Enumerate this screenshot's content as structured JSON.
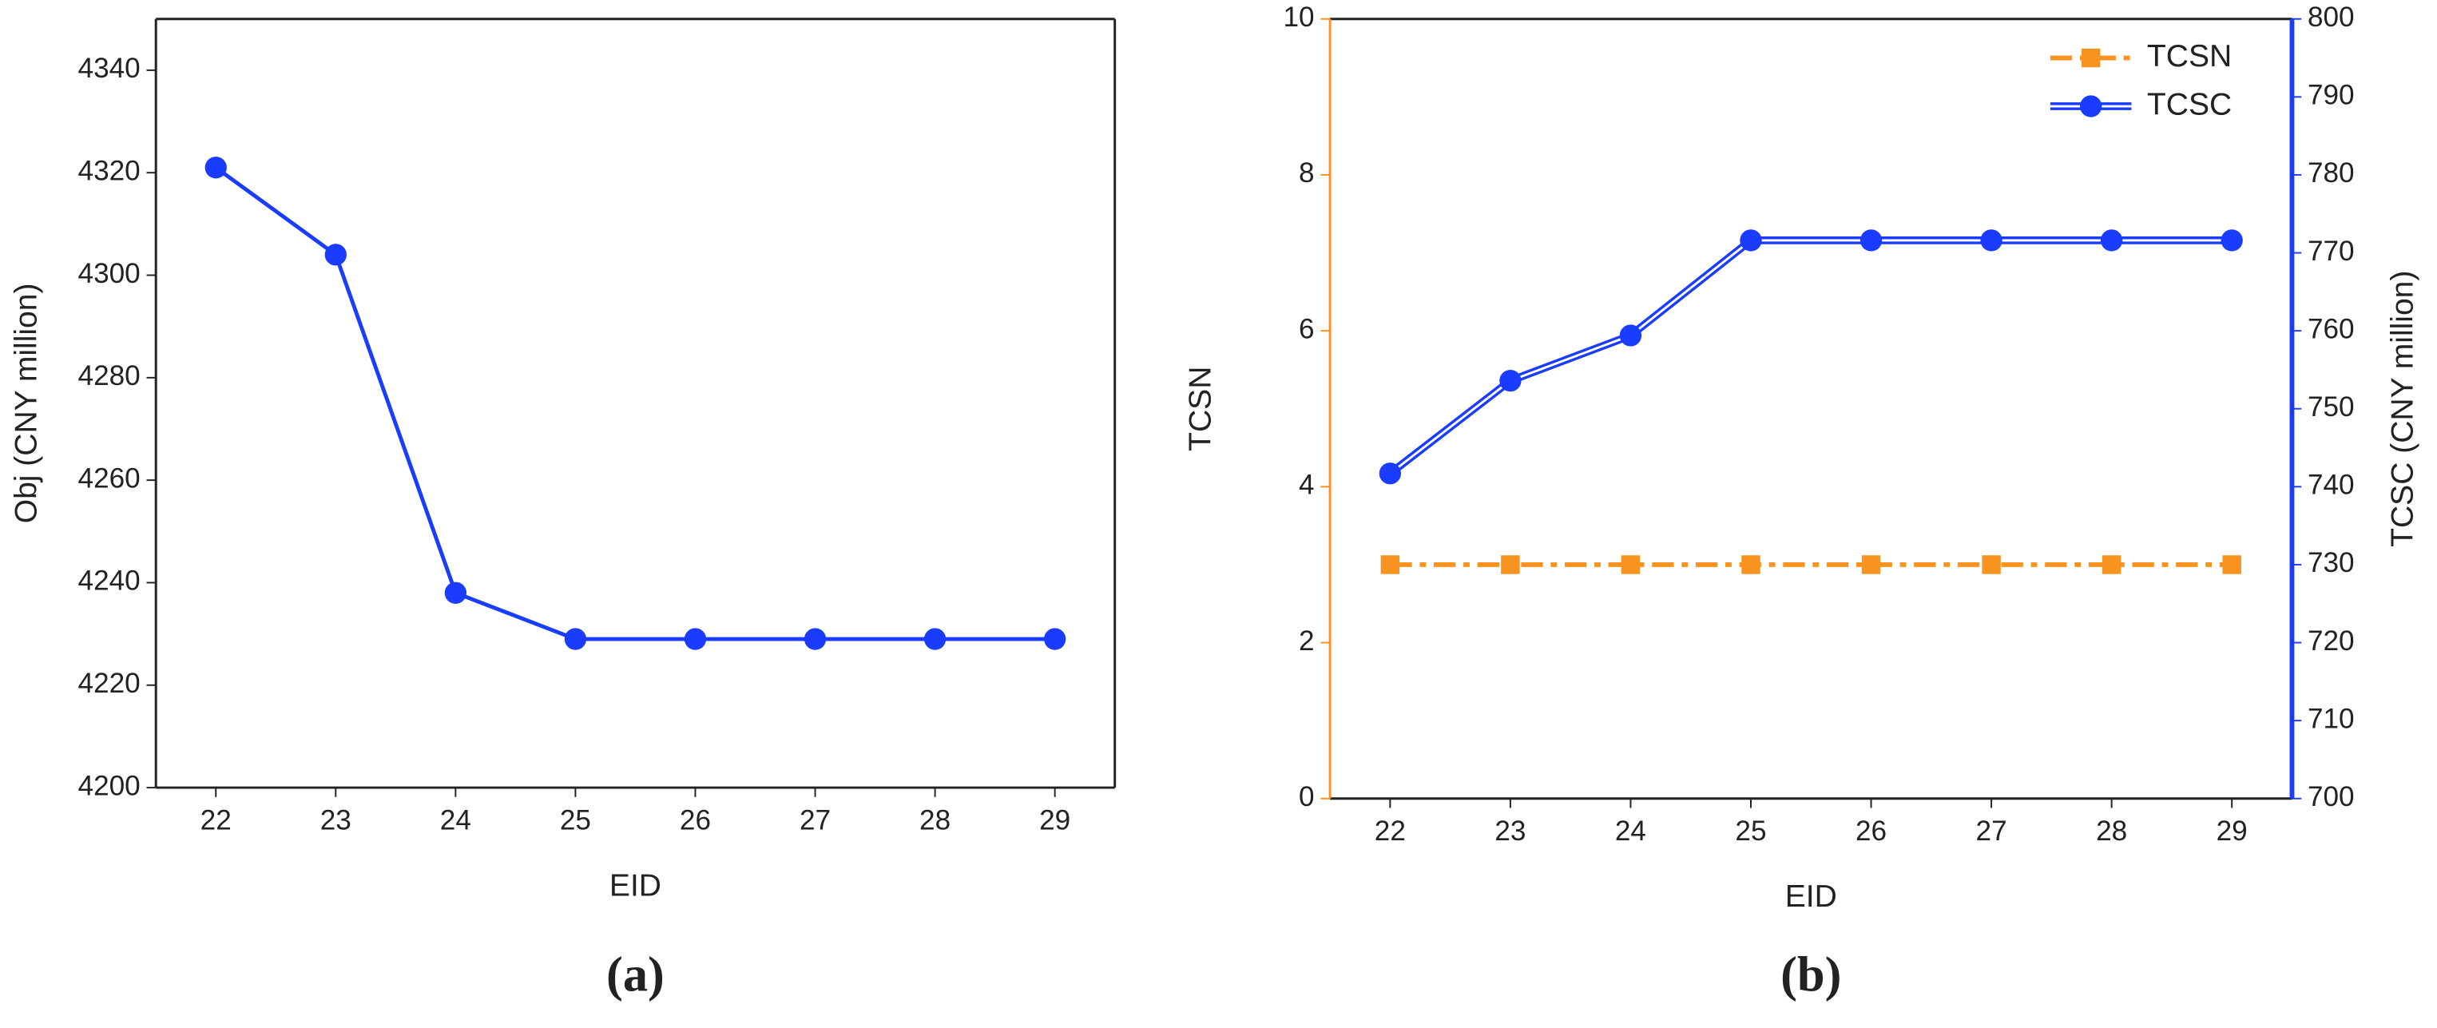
{
  "chart_data": [
    {
      "type": "line",
      "panel_label": "(a)",
      "x_label": "EID",
      "y_label": "Obj (CNY million)",
      "x": [
        22,
        23,
        24,
        25,
        26,
        27,
        28,
        29
      ],
      "values": [
        4321,
        4304,
        4238,
        4229,
        4229,
        4229,
        4229,
        4229
      ],
      "color": "#1a3cff",
      "marker": "circle",
      "xlim": [
        21.5,
        29.5
      ],
      "xticks": [
        22,
        23,
        24,
        25,
        26,
        27,
        28,
        29
      ],
      "ylim": [
        4200,
        4350
      ],
      "yticks": [
        4200,
        4220,
        4240,
        4260,
        4280,
        4300,
        4320,
        4340
      ]
    },
    {
      "type": "line",
      "panel_label": "(b)",
      "x_label": "EID",
      "y_label": "TCSN",
      "y2_label": "TCSC (CNY million)",
      "x": [
        22,
        23,
        24,
        25,
        26,
        27,
        28,
        29
      ],
      "series": [
        {
          "name": "TCSN",
          "color": "#f7931e",
          "marker": "square",
          "dash": "dashdot",
          "values": [
            3,
            3,
            3,
            3,
            3,
            3,
            3,
            3
          ]
        },
        {
          "name": "TCSC",
          "color": "#1a3cff",
          "marker": "circle",
          "dash": "double",
          "axis": "y2",
          "values": [
            741.7,
            753.6,
            759.4,
            771.6,
            771.6,
            771.6,
            771.6,
            771.6
          ]
        }
      ],
      "legend": "upper right",
      "xlim": [
        21.5,
        29.5
      ],
      "xticks": [
        22,
        23,
        24,
        25,
        26,
        27,
        28,
        29
      ],
      "ylim": [
        0,
        10
      ],
      "yticks": [
        0,
        2,
        4,
        6,
        8,
        10
      ],
      "y2lim": [
        700,
        800
      ],
      "y2ticks": [
        700,
        710,
        720,
        730,
        740,
        750,
        760,
        770,
        780,
        790,
        800
      ]
    }
  ]
}
